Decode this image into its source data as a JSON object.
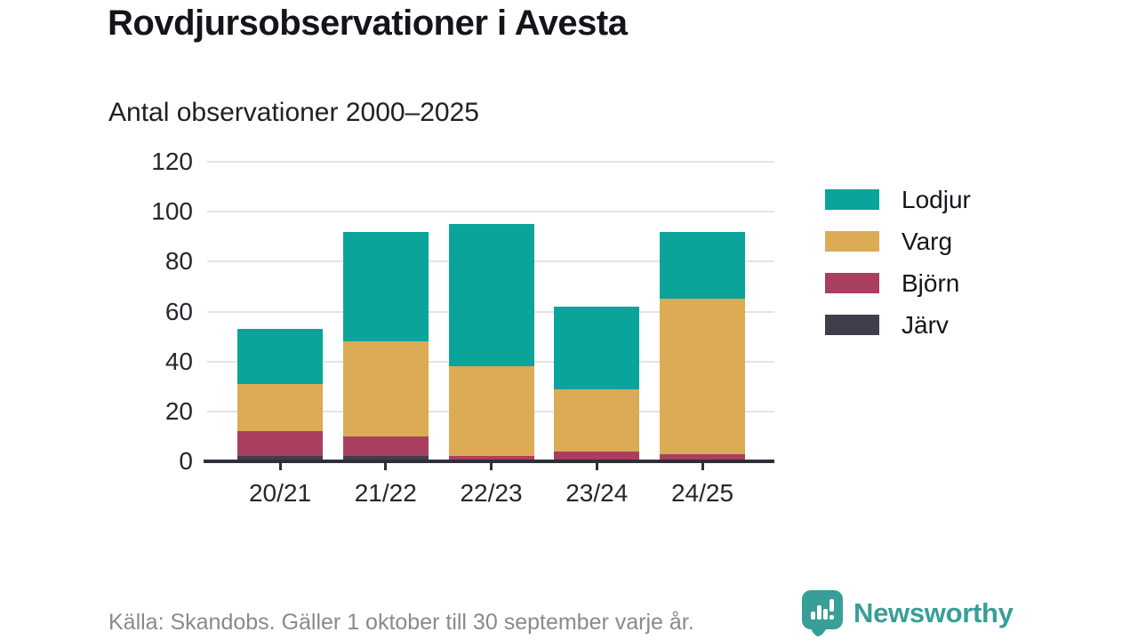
{
  "chart_data": {
    "type": "stacked_bar",
    "title": "Rovdjursobservationer i Avesta",
    "subtitle": "Antal observationer 2000–2025",
    "categories": [
      "20/21",
      "21/22",
      "22/23",
      "23/24",
      "24/25"
    ],
    "series": [
      {
        "name": "Lodjur",
        "color": "#0aa49a",
        "values": [
          22,
          44,
          57,
          33,
          27
        ]
      },
      {
        "name": "Varg",
        "color": "#dcab55",
        "values": [
          19,
          38,
          36,
          25,
          62
        ]
      },
      {
        "name": "Björn",
        "color": "#a83f5f",
        "values": [
          10,
          8,
          2,
          4,
          3
        ]
      },
      {
        "name": "Järv",
        "color": "#3e3e4d",
        "values": [
          2,
          2,
          0,
          0,
          0
        ]
      }
    ],
    "stack_order_bottom_to_top": [
      "Järv",
      "Björn",
      "Varg",
      "Lodjur"
    ],
    "totals": [
      53,
      92,
      95,
      62,
      92
    ],
    "ylim": [
      0,
      120
    ],
    "yticks": [
      0,
      20,
      40,
      60,
      80,
      100,
      120
    ],
    "grid": true,
    "legend_position": "right"
  },
  "footer": {
    "source": "Källa: Skandobs. Gäller 1 oktober till 30 september varje år.",
    "brand": "Newsworthy"
  },
  "colors": {
    "accent": "#379f97",
    "axis": "#2f2f3a",
    "grid": "#e4e4e4",
    "text": "#14141b",
    "muted": "#8a8a8a"
  }
}
